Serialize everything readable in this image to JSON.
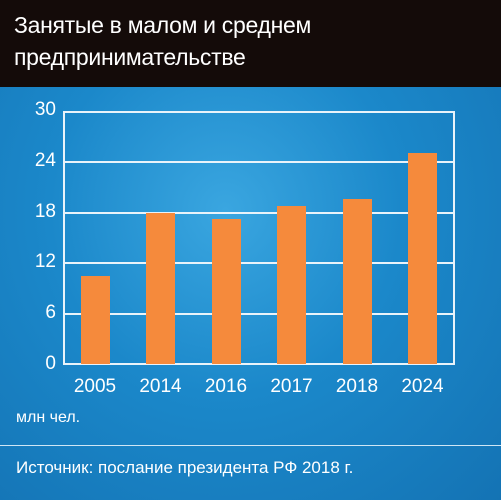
{
  "title": "Занятые в малом и среднем предпринимательстве",
  "unit_label": "млн чел.",
  "source": "Источник: послание президента РФ 2018 г.",
  "colors": {
    "bar": "#f58a3c",
    "background": "#1a86c9",
    "title_bar": "#140b09",
    "axis": "#e9f3fa"
  },
  "chart_data": {
    "type": "bar",
    "title": "Занятые в малом и среднем предпринимательстве",
    "xlabel": "",
    "ylabel": "млн чел.",
    "categories": [
      "2005",
      "2014",
      "2016",
      "2017",
      "2018",
      "2024"
    ],
    "values": [
      10.5,
      18,
      17.3,
      18.8,
      19.6,
      25
    ],
    "ylim": [
      0,
      30
    ],
    "yticks": [
      "0",
      "6",
      "12",
      "18",
      "24",
      "30"
    ],
    "grid": true,
    "legend": "none"
  }
}
